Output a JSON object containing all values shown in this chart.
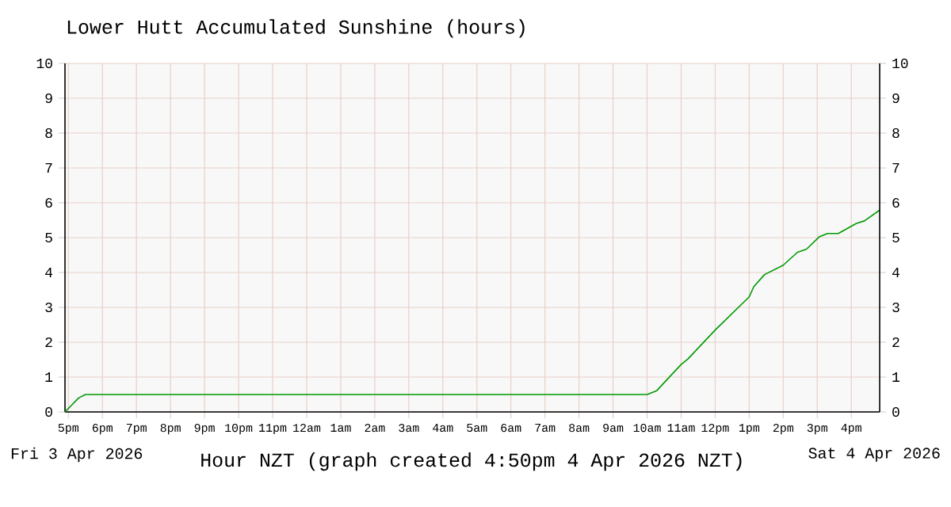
{
  "chart_data": {
    "type": "line",
    "title": "Lower Hutt Accumulated Sunshine (hours)",
    "xlabel": "Hour NZT (graph created 4:50pm 4 Apr 2026 NZT)",
    "annotations": [
      "Fri 3 Apr 2026",
      "Sat 4 Apr 2026"
    ],
    "x": [
      "2026-04-03T16:54",
      "2026-04-03T17:06",
      "2026-04-03T17:18",
      "2026-04-03T17:30",
      "2026-04-04T10:00",
      "2026-04-04T10:17",
      "2026-04-04T11:00",
      "2026-04-04T11:12",
      "2026-04-04T12:00",
      "2026-04-04T13:00",
      "2026-04-04T13:08",
      "2026-04-04T13:27",
      "2026-04-04T14:00",
      "2026-04-04T14:25",
      "2026-04-04T14:41",
      "2026-04-04T15:04",
      "2026-04-04T15:18",
      "2026-04-04T15:37",
      "2026-04-04T16:09",
      "2026-04-04T16:23",
      "2026-04-04T16:50"
    ],
    "series": [
      {
        "color": "#009900",
        "values": [
          0,
          0.2,
          0.4,
          0.5,
          0.5,
          0.61,
          1.36,
          1.52,
          2.35,
          3.3,
          3.59,
          3.94,
          4.21,
          4.58,
          4.67,
          5.03,
          5.12,
          5.12,
          5.41,
          5.48,
          5.79
        ]
      }
    ],
    "xlim": [
      "2026-04-03T16:54",
      "2026-04-04T16:50"
    ],
    "xticks": [
      {
        "value": "2026-04-03T17:00",
        "label": "5pm"
      },
      {
        "value": "2026-04-03T18:00",
        "label": "6pm"
      },
      {
        "value": "2026-04-03T19:00",
        "label": "7pm"
      },
      {
        "value": "2026-04-03T20:00",
        "label": "8pm"
      },
      {
        "value": "2026-04-03T21:00",
        "label": "9pm"
      },
      {
        "value": "2026-04-03T22:00",
        "label": "10pm"
      },
      {
        "value": "2026-04-03T23:00",
        "label": "11pm"
      },
      {
        "value": "2026-04-04T00:00",
        "label": "12am"
      },
      {
        "value": "2026-04-04T01:00",
        "label": "1am"
      },
      {
        "value": "2026-04-04T02:00",
        "label": "2am"
      },
      {
        "value": "2026-04-04T03:00",
        "label": "3am"
      },
      {
        "value": "2026-04-04T04:00",
        "label": "4am"
      },
      {
        "value": "2026-04-04T05:00",
        "label": "5am"
      },
      {
        "value": "2026-04-04T06:00",
        "label": "6am"
      },
      {
        "value": "2026-04-04T07:00",
        "label": "7am"
      },
      {
        "value": "2026-04-04T08:00",
        "label": "8am"
      },
      {
        "value": "2026-04-04T09:00",
        "label": "9am"
      },
      {
        "value": "2026-04-04T10:00",
        "label": "10am"
      },
      {
        "value": "2026-04-04T11:00",
        "label": "11am"
      },
      {
        "value": "2026-04-04T12:00",
        "label": "12pm"
      },
      {
        "value": "2026-04-04T13:00",
        "label": "1pm"
      },
      {
        "value": "2026-04-04T14:00",
        "label": "2pm"
      },
      {
        "value": "2026-04-04T15:00",
        "label": "3pm"
      },
      {
        "value": "2026-04-04T16:00",
        "label": "4pm"
      }
    ],
    "ylim": [
      0,
      10
    ],
    "yticks": [
      0,
      1,
      2,
      3,
      4,
      5,
      6,
      7,
      8,
      9,
      10
    ],
    "y2lim": [
      0,
      10
    ],
    "y2ticks": [
      0,
      1,
      2,
      3,
      4,
      5,
      6,
      7,
      8,
      9,
      10
    ],
    "grid": true
  }
}
